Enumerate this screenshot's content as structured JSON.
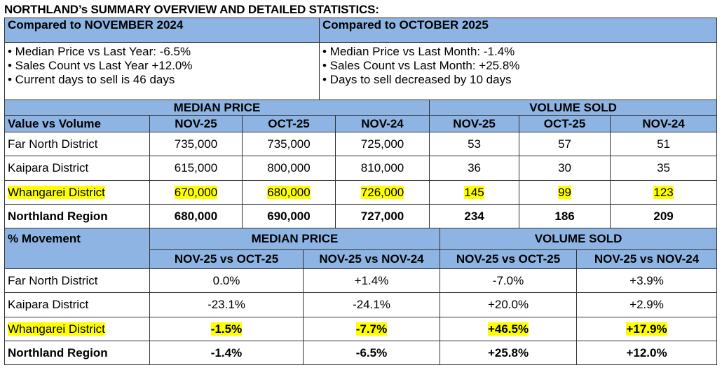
{
  "title": "NORTHLAND’s SUMMARY OVERVIEW AND DETAILED STATISTICS:",
  "summary": {
    "left": {
      "header": "Compared to NOVEMBER 2024",
      "bullets": [
        "• Median Price vs Last Year: -6.5%",
        "• Sales Count vs Last Year +12.0%",
        "• Current days to sell is 46 days"
      ]
    },
    "right": {
      "header": "Compared to OCTOBER 2025",
      "bullets": [
        "• Median Price vs Last Month: -1.4%",
        "• Sales Count vs Last Month: +25.8%",
        "• Days to sell decreased by 10 days"
      ]
    }
  },
  "stats": {
    "group_median": "MEDIAN PRICE",
    "group_volume": "VOLUME SOLD",
    "row_header": "Value vs Volume",
    "columns": [
      "NOV-25",
      "OCT-25",
      "NOV-24",
      "NOV-25",
      "OCT-25",
      "NOV-24"
    ],
    "rows": [
      {
        "name": "Far North District",
        "values": [
          "735,000",
          "735,000",
          "725,000",
          "53",
          "57",
          "51"
        ]
      },
      {
        "name": "Kaipara District",
        "values": [
          "615,000",
          "800,000",
          "810,000",
          "36",
          "30",
          "35"
        ]
      },
      {
        "name": "Whangarei District",
        "values": [
          "670,000",
          "680,000",
          "726,000",
          "145",
          "99",
          "123"
        ]
      },
      {
        "name": "Northland Region",
        "values": [
          "680,000",
          "690,000",
          "727,000",
          "234",
          "186",
          "209"
        ]
      }
    ]
  },
  "movement": {
    "row_header": "% Movement",
    "group_median": "MEDIAN PRICE",
    "group_volume": "VOLUME SOLD",
    "columns": [
      "NOV-25 vs OCT-25",
      "NOV-25 vs NOV-24",
      "NOV-25 vs OCT-25",
      "NOV-25 vs NOV-24"
    ],
    "rows": [
      {
        "name": "Far North District",
        "values": [
          "0.0%",
          "+1.4%",
          "-7.0%",
          "+3.9%"
        ]
      },
      {
        "name": "Kaipara District",
        "values": [
          "-23.1%",
          "-24.1%",
          "+20.0%",
          "+2.9%"
        ]
      },
      {
        "name": "Whangarei District",
        "values": [
          "-1.5%",
          "-7.7%",
          "+46.5%",
          "+17.9%"
        ]
      },
      {
        "name": "Northland Region",
        "values": [
          "-1.4%",
          "-6.5%",
          "+25.8%",
          "+12.0%"
        ]
      }
    ]
  },
  "colors": {
    "header_bg": "#8db4e2",
    "highlight": "#ffff00"
  }
}
